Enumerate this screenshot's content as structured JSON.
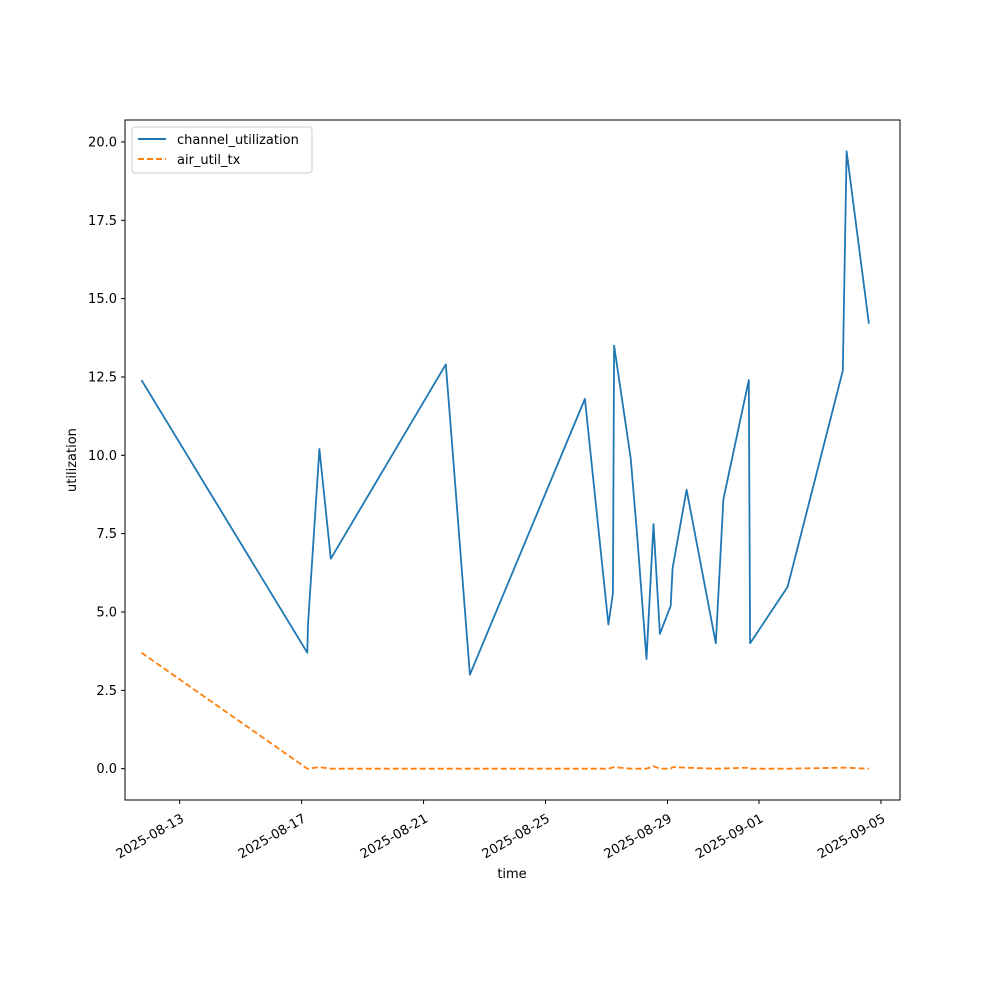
{
  "chart_data": {
    "type": "line",
    "title": "",
    "xlabel": "time",
    "ylabel": "utilization",
    "xlim": [
      "2025-08-11T05:00",
      "2025-09-05T15:00"
    ],
    "ylim": [
      -1.0,
      20.7
    ],
    "x_ticks": [
      "2025-08-13",
      "2025-08-17",
      "2025-08-21",
      "2025-08-25",
      "2025-08-29",
      "2025-09-01",
      "2025-09-05"
    ],
    "y_ticks": [
      "0.0",
      "2.5",
      "5.0",
      "7.5",
      "10.0",
      "12.5",
      "15.0",
      "17.5",
      "20.0"
    ],
    "grid": false,
    "legend_position": "upper-left",
    "series": [
      {
        "name": "channel_utilization",
        "color": "#1f77b4",
        "style": "solid",
        "points": [
          [
            "2025-08-11T18:00",
            12.4
          ],
          [
            "2025-08-17T04:30",
            3.7
          ],
          [
            "2025-08-17T05:00",
            4.6
          ],
          [
            "2025-08-17T14:00",
            10.2
          ],
          [
            "2025-08-17T23:00",
            6.7
          ],
          [
            "2025-08-21T17:30",
            12.9
          ],
          [
            "2025-08-21T22:00",
            10.6
          ],
          [
            "2025-08-22T12:30",
            3.0
          ],
          [
            "2025-08-26T07:00",
            11.8
          ],
          [
            "2025-08-27T01:30",
            4.6
          ],
          [
            "2025-08-27T05:00",
            5.6
          ],
          [
            "2025-08-27T06:00",
            13.5
          ],
          [
            "2025-08-27T19:00",
            9.9
          ],
          [
            "2025-08-28T00:00",
            7.5
          ],
          [
            "2025-08-28T07:30",
            3.5
          ],
          [
            "2025-08-28T13:00",
            7.8
          ],
          [
            "2025-08-28T18:00",
            4.3
          ],
          [
            "2025-08-29T02:30",
            5.2
          ],
          [
            "2025-08-29T04:00",
            6.4
          ],
          [
            "2025-08-29T15:00",
            8.9
          ],
          [
            "2025-08-30T14:00",
            4.0
          ],
          [
            "2025-08-30T20:00",
            8.6
          ],
          [
            "2025-08-31T16:00",
            12.4
          ],
          [
            "2025-08-31T17:00",
            4.0
          ],
          [
            "2025-09-01T22:30",
            5.8
          ],
          [
            "2025-09-03T18:00",
            12.7
          ],
          [
            "2025-09-03T21:00",
            19.7
          ],
          [
            "2025-09-04T14:30",
            14.2
          ]
        ]
      },
      {
        "name": "air_util_tx",
        "color": "#ff7f0e",
        "style": "dashed",
        "points": [
          [
            "2025-08-11T18:00",
            3.7
          ],
          [
            "2025-08-17T04:30",
            0.0
          ],
          [
            "2025-08-17T14:00",
            0.05
          ],
          [
            "2025-08-17T23:00",
            0.0
          ],
          [
            "2025-08-21T17:30",
            0.0
          ],
          [
            "2025-08-22T12:30",
            0.0
          ],
          [
            "2025-08-26T07:00",
            0.0
          ],
          [
            "2025-08-27T01:30",
            0.0
          ],
          [
            "2025-08-27T06:00",
            0.05
          ],
          [
            "2025-08-27T19:00",
            0.0
          ],
          [
            "2025-08-28T07:30",
            0.0
          ],
          [
            "2025-08-28T13:00",
            0.08
          ],
          [
            "2025-08-28T18:00",
            0.0
          ],
          [
            "2025-08-29T02:30",
            0.0
          ],
          [
            "2025-08-29T04:00",
            0.05
          ],
          [
            "2025-08-29T15:00",
            0.03
          ],
          [
            "2025-08-30T14:00",
            0.0
          ],
          [
            "2025-08-31T16:00",
            0.03
          ],
          [
            "2025-08-31T17:00",
            0.0
          ],
          [
            "2025-09-01T22:30",
            0.0
          ],
          [
            "2025-09-03T18:00",
            0.03
          ],
          [
            "2025-09-03T21:00",
            0.03
          ],
          [
            "2025-09-04T14:30",
            0.0
          ]
        ]
      }
    ]
  }
}
